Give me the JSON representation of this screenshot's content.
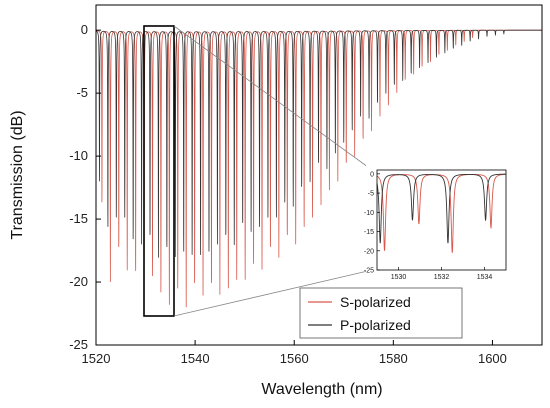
{
  "chart_data": {
    "type": "line",
    "xlabel": "Wavelength (nm)",
    "ylabel": "Transmission (dB)",
    "xlim": [
      1520,
      1610
    ],
    "ylim": [
      -25,
      2
    ],
    "x_ticks": [
      "1520",
      "1540",
      "1560",
      "1580",
      "1600"
    ],
    "y_ticks": [
      "0",
      "-5",
      "-10",
      "-15",
      "-20",
      "-25"
    ],
    "grid": false,
    "legend_position": "bottom-right",
    "colors": {
      "s_polarized": "#d9574a",
      "p_polarized": "#333333",
      "axis": "#000000"
    },
    "series": [
      {
        "name": "S-polarized",
        "color": "#d9574a",
        "dip_wavelengths": [
          1521.2,
          1522.9,
          1524.6,
          1526.3,
          1528.0,
          1529.7,
          1531.4,
          1533.1,
          1534.8,
          1536.5,
          1538.2,
          1539.9,
          1541.6,
          1543.3,
          1545.0,
          1546.7,
          1548.4,
          1550.1,
          1551.8,
          1553.5,
          1555.2,
          1556.9,
          1558.6,
          1560.3,
          1562.0,
          1563.7,
          1565.4,
          1567.1,
          1568.8,
          1570.5,
          1572.2,
          1573.9,
          1575.6,
          1577.3,
          1579.0,
          1580.7,
          1582.4,
          1584.1,
          1585.8,
          1587.5,
          1589.2,
          1590.9,
          1592.6,
          1594.3,
          1596.0
        ],
        "dip_depths_db": [
          -14,
          -20,
          -18,
          -19,
          -20,
          -21,
          -20,
          -21,
          -22,
          -21,
          -22,
          -21,
          -21,
          -21,
          -21,
          -21,
          -20,
          -20,
          -19,
          -19,
          -18,
          -18,
          -17,
          -17,
          -16,
          -15,
          -14,
          -13,
          -12,
          -11,
          -10,
          -9,
          -8,
          -7,
          -6,
          -5,
          -4,
          -3.5,
          -3,
          -2.5,
          -2,
          -1.6,
          -1.2,
          -0.9,
          -0.6
        ]
      },
      {
        "name": "P-polarized",
        "color": "#333333",
        "dip_wavelengths": [
          1520.7,
          1522.4,
          1524.1,
          1525.8,
          1527.5,
          1529.2,
          1530.9,
          1532.6,
          1534.3,
          1536.0,
          1537.7,
          1539.4,
          1541.1,
          1542.8,
          1544.5,
          1546.2,
          1547.9,
          1549.6,
          1551.3,
          1553.0,
          1554.7,
          1556.4,
          1558.1,
          1559.8,
          1561.5,
          1563.2,
          1564.9,
          1566.6,
          1568.3,
          1570.0,
          1571.7,
          1573.4,
          1575.1,
          1576.8,
          1578.5,
          1580.2,
          1581.9,
          1583.6,
          1585.3,
          1587.0,
          1588.7,
          1590.4,
          1592.1,
          1593.8,
          1595.5,
          1597.2,
          1598.9,
          1600.6,
          1602.3
        ],
        "dip_depths_db": [
          -12,
          -16,
          -15,
          -15,
          -17,
          -17,
          -17,
          -18,
          -18,
          -18,
          -18,
          -18,
          -18,
          -18,
          -17,
          -17,
          -17,
          -16,
          -16,
          -16,
          -15,
          -15,
          -14,
          -14,
          -13,
          -12,
          -11,
          -11,
          -10,
          -9,
          -8,
          -7,
          -7,
          -6,
          -5,
          -4.5,
          -4,
          -3.5,
          -3,
          -2.6,
          -2.2,
          -1.8,
          -1.5,
          -1.2,
          -0.9,
          -0.7,
          -0.5,
          -0.4,
          -0.3
        ]
      }
    ],
    "inset": {
      "xlim": [
        1529,
        1535
      ],
      "ylim": [
        -25,
        1
      ],
      "x_ticks": [
        "1530",
        "1532",
        "1534"
      ],
      "y_ticks": [
        "0",
        "-5",
        "-10",
        "-15",
        "-20",
        "-25"
      ],
      "s_dips": [
        {
          "x": 1529.35,
          "depth": -20
        },
        {
          "x": 1530.95,
          "depth": -13
        },
        {
          "x": 1532.5,
          "depth": -20.5
        },
        {
          "x": 1534.3,
          "depth": -14
        }
      ],
      "p_dips": [
        {
          "x": 1529.15,
          "depth": -18
        },
        {
          "x": 1530.65,
          "depth": -12
        },
        {
          "x": 1532.3,
          "depth": -18
        },
        {
          "x": 1534.05,
          "depth": -12
        }
      ]
    }
  }
}
